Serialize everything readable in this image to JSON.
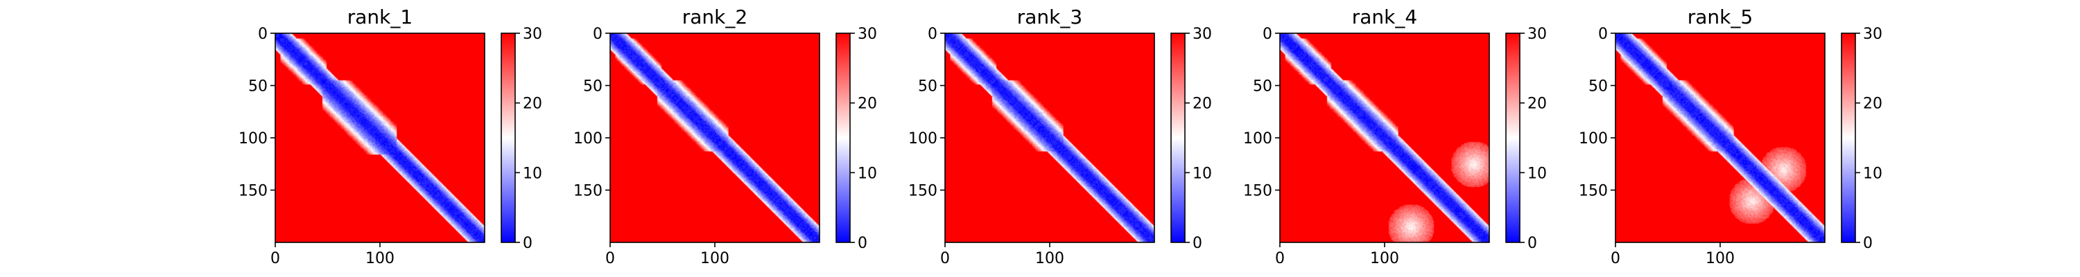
{
  "chart_data": [
    {
      "type": "heatmap",
      "title": "rank_1",
      "matrix_size": 200,
      "xlim": [
        0,
        200
      ],
      "ylim": [
        200,
        0
      ],
      "xticks": [
        0,
        100
      ],
      "yticks": [
        0,
        50,
        100,
        150
      ],
      "colorbar": {
        "min": 0,
        "max": 30,
        "ticks": [
          0,
          10,
          20,
          30
        ],
        "colormap": "bwr"
      },
      "domains": [
        {
          "start": 5,
          "end": 48,
          "radius": 16
        },
        {
          "start": 45,
          "end": 115,
          "radius": 20
        }
      ],
      "diagonal_width": 5,
      "offdiag_bands": []
    },
    {
      "type": "heatmap",
      "title": "rank_2",
      "matrix_size": 200,
      "xlim": [
        0,
        200
      ],
      "ylim": [
        200,
        0
      ],
      "xticks": [
        0,
        100
      ],
      "yticks": [
        0,
        50,
        100,
        150
      ],
      "colorbar": {
        "min": 0,
        "max": 30,
        "ticks": [
          0,
          10,
          20,
          30
        ],
        "colormap": "bwr"
      },
      "domains": [
        {
          "start": 5,
          "end": 48,
          "radius": 14
        },
        {
          "start": 45,
          "end": 112,
          "radius": 17
        }
      ],
      "diagonal_width": 5,
      "offdiag_bands": []
    },
    {
      "type": "heatmap",
      "title": "rank_3",
      "matrix_size": 200,
      "xlim": [
        0,
        200
      ],
      "ylim": [
        200,
        0
      ],
      "xticks": [
        0,
        100
      ],
      "yticks": [
        0,
        50,
        100,
        150
      ],
      "colorbar": {
        "min": 0,
        "max": 30,
        "ticks": [
          0,
          10,
          20,
          30
        ],
        "colormap": "bwr"
      },
      "domains": [
        {
          "start": 5,
          "end": 48,
          "radius": 15
        },
        {
          "start": 45,
          "end": 112,
          "radius": 18
        }
      ],
      "diagonal_width": 5,
      "offdiag_bands": []
    },
    {
      "type": "heatmap",
      "title": "rank_4",
      "matrix_size": 200,
      "xlim": [
        0,
        200
      ],
      "ylim": [
        200,
        0
      ],
      "xticks": [
        0,
        100
      ],
      "yticks": [
        0,
        50,
        100,
        150
      ],
      "colorbar": {
        "min": 0,
        "max": 30,
        "ticks": [
          0,
          10,
          20,
          30
        ],
        "colormap": "bwr"
      },
      "domains": [
        {
          "start": 5,
          "end": 48,
          "radius": 15
        },
        {
          "start": 45,
          "end": 112,
          "radius": 17
        }
      ],
      "diagonal_width": 5,
      "offdiag_bands": [
        {
          "a": 125,
          "b": 185,
          "strength": 0.45
        }
      ]
    },
    {
      "type": "heatmap",
      "title": "rank_5",
      "matrix_size": 200,
      "xlim": [
        0,
        200
      ],
      "ylim": [
        200,
        0
      ],
      "xticks": [
        0,
        100
      ],
      "yticks": [
        0,
        50,
        100,
        150
      ],
      "colorbar": {
        "min": 0,
        "max": 30,
        "ticks": [
          0,
          10,
          20,
          30
        ],
        "colormap": "bwr"
      },
      "domains": [
        {
          "start": 5,
          "end": 48,
          "radius": 15
        },
        {
          "start": 45,
          "end": 112,
          "radius": 17
        }
      ],
      "diagonal_width": 5,
      "offdiag_bands": [
        {
          "a": 130,
          "b": 160,
          "strength": 0.4
        }
      ]
    }
  ]
}
